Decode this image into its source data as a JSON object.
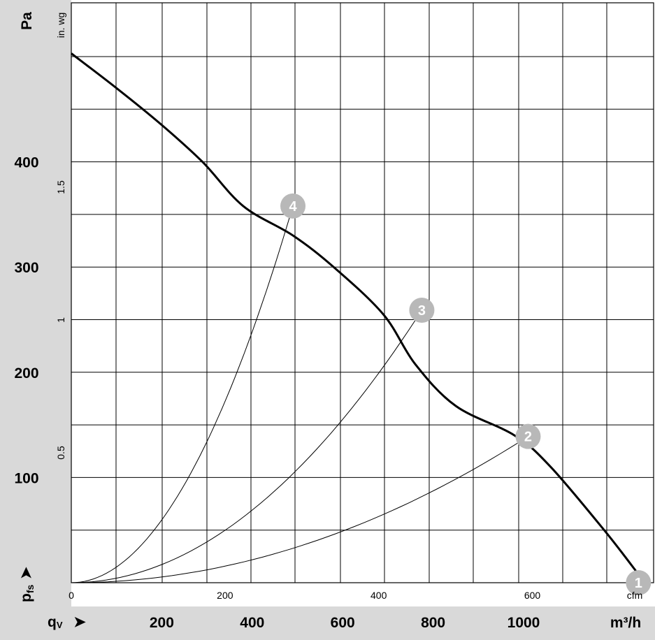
{
  "chart_data": {
    "type": "line",
    "title": "",
    "y_primary": {
      "unit": "Pa",
      "ticks": [
        100,
        200,
        300,
        400
      ],
      "range": [
        0,
        500
      ]
    },
    "y_secondary": {
      "unit": "in. wg",
      "ticks": [
        "0.5",
        "1",
        "1.5"
      ]
    },
    "y_axis_symbol": {
      "main": "p",
      "sub": "fs"
    },
    "x_primary": {
      "unit": "m³/h",
      "ticks": [
        200,
        400,
        600,
        800,
        1000
      ],
      "range": [
        0,
        1260
      ]
    },
    "x_secondary": {
      "unit": "cfm",
      "ticks": [
        "0",
        "200",
        "400",
        "600"
      ]
    },
    "x_axis_symbol": {
      "main": "q",
      "sub": "V"
    },
    "grid": true,
    "series": [
      {
        "x": [
          0,
          100,
          200,
          290,
          380,
          490,
          580,
          690,
          760,
          850,
          980,
          1060,
          1180,
          1254
        ],
        "y": [
          503,
          470,
          435,
          400,
          358,
          330,
          300,
          255,
          208,
          168,
          140,
          110,
          49,
          8
        ]
      }
    ],
    "operating_points": [
      {
        "label": "4",
        "x": 490,
        "y": 358
      },
      {
        "label": "3",
        "x": 775,
        "y": 259
      },
      {
        "label": "2",
        "x": 1010,
        "y": 139
      },
      {
        "label": "1",
        "x": 1254,
        "y": 0
      }
    ],
    "system_curves": [
      {
        "through_point": "4"
      },
      {
        "through_point": "3"
      },
      {
        "through_point": "2"
      }
    ]
  }
}
